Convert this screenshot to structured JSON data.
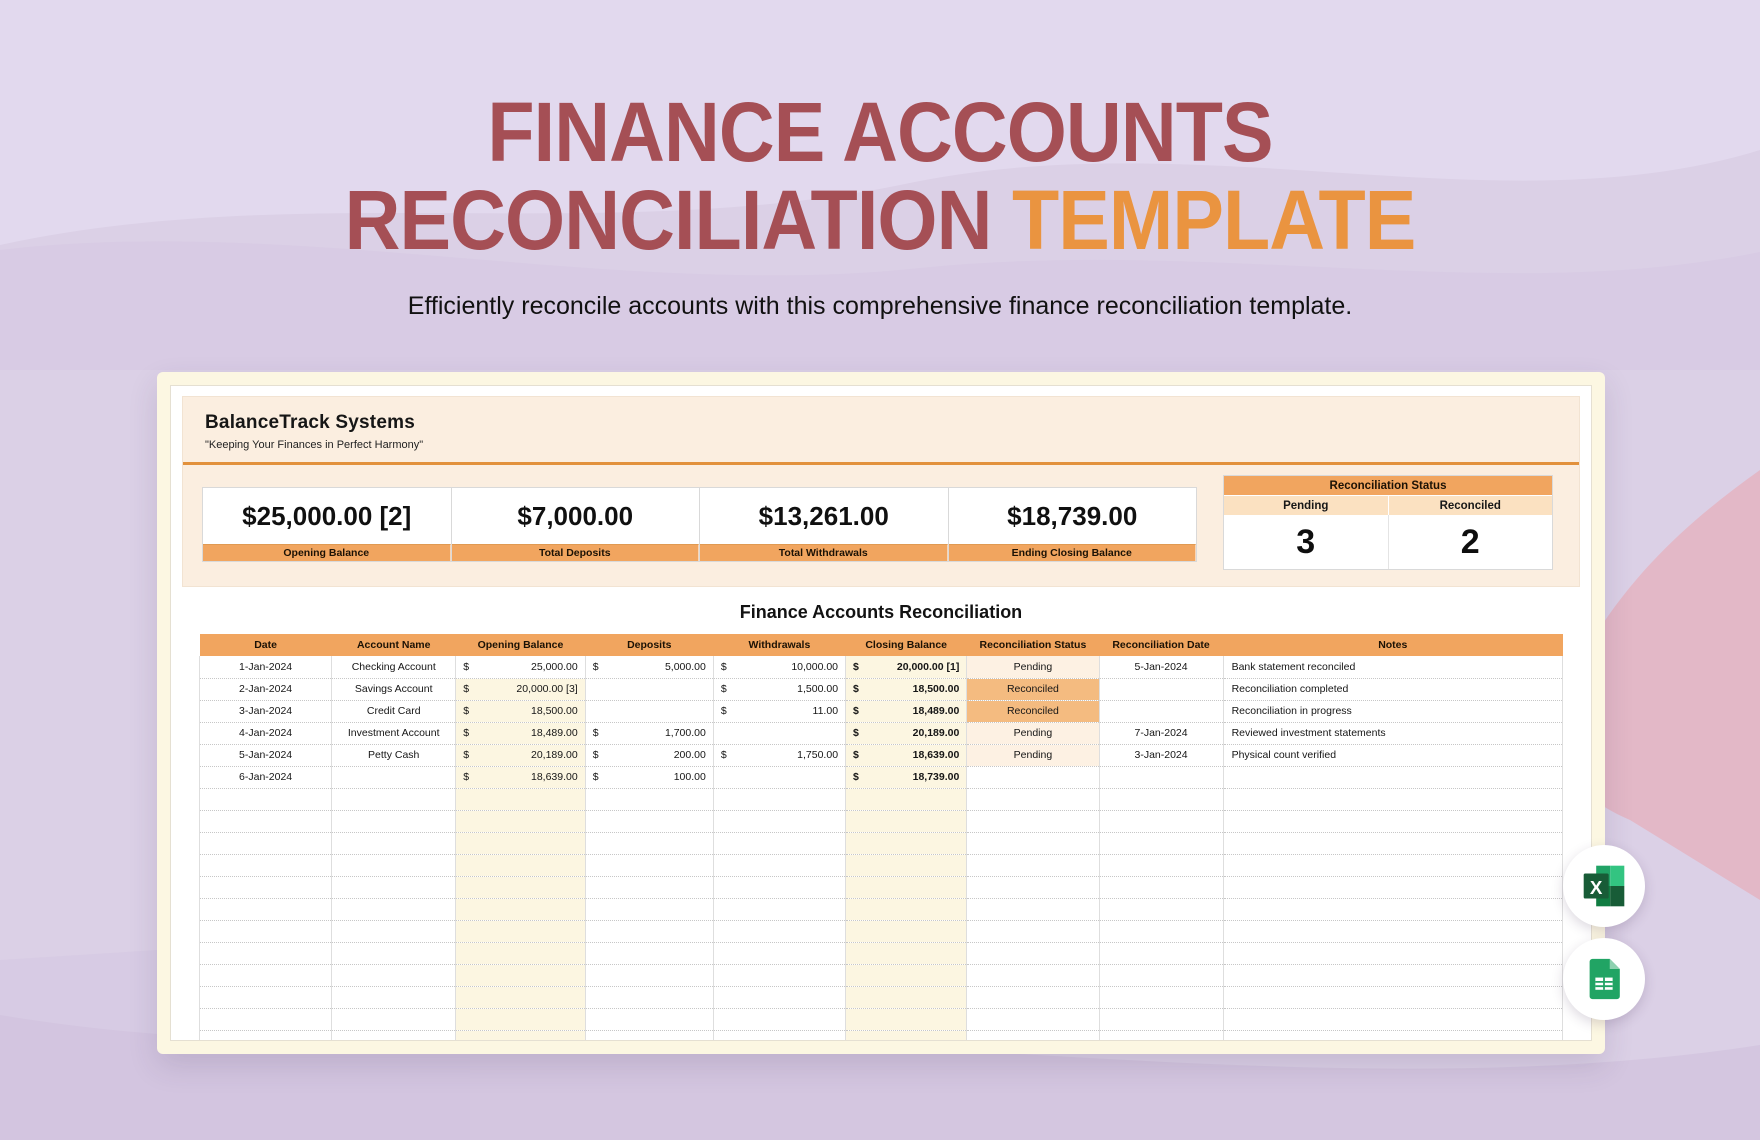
{
  "hero": {
    "title_line1": "FINANCE ACCOUNTS",
    "title_line2": "RECONCILIATION ",
    "title_accent": "TEMPLATE",
    "subtitle": "Efficiently reconcile accounts with this comprehensive finance reconciliation template."
  },
  "company": {
    "name": "BalanceTrack Systems",
    "tagline": "\"Keeping Your Finances in Perfect Harmony\""
  },
  "summary": {
    "cards": [
      {
        "value": "$25,000.00 [2]",
        "label": "Opening Balance"
      },
      {
        "value": "$7,000.00",
        "label": "Total Deposits"
      },
      {
        "value": "$13,261.00",
        "label": "Total Withdrawals"
      },
      {
        "value": "$18,739.00",
        "label": "Ending Closing Balance"
      }
    ],
    "status_box": {
      "title": "Reconciliation Status",
      "col1": "Pending",
      "col2": "Reconciled",
      "val1": "3",
      "val2": "2"
    }
  },
  "table": {
    "title": "Finance Accounts Reconciliation",
    "currency_symbol": "$",
    "headers": [
      "Date",
      "Account Name",
      "Opening Balance",
      "Deposits",
      "Withdrawals",
      "Closing Balance",
      "Reconciliation Status",
      "Reconciliation Date",
      "Notes"
    ],
    "rows": [
      {
        "date": "1-Jan-2024",
        "account": "Checking Account",
        "opening": "25,000.00",
        "deposits": "5,000.00",
        "withdrawals": "10,000.00",
        "closing": "20,000.00 [1]",
        "status": "Pending",
        "rec_date": "5-Jan-2024",
        "notes": "Bank statement reconciled"
      },
      {
        "date": "2-Jan-2024",
        "account": "Savings Account",
        "opening": "20,000.00 [3]",
        "deposits": "",
        "withdrawals": "1,500.00",
        "closing": "18,500.00",
        "status": "Reconciled",
        "rec_date": "",
        "notes": "Reconciliation completed"
      },
      {
        "date": "3-Jan-2024",
        "account": "Credit Card",
        "opening": "18,500.00",
        "deposits": "",
        "withdrawals": "11.00",
        "closing": "18,489.00",
        "status": "Reconciled",
        "rec_date": "",
        "notes": "Reconciliation in progress"
      },
      {
        "date": "4-Jan-2024",
        "account": "Investment Account",
        "opening": "18,489.00",
        "deposits": "1,700.00",
        "withdrawals": "",
        "closing": "20,189.00",
        "status": "Pending",
        "rec_date": "7-Jan-2024",
        "notes": "Reviewed investment statements"
      },
      {
        "date": "5-Jan-2024",
        "account": "Petty Cash",
        "opening": "20,189.00",
        "deposits": "200.00",
        "withdrawals": "1,750.00",
        "closing": "18,639.00",
        "status": "Pending",
        "rec_date": "3-Jan-2024",
        "notes": "Physical count verified"
      },
      {
        "date": "6-Jan-2024",
        "account": "",
        "opening": "18,639.00",
        "deposits": "100.00",
        "withdrawals": "",
        "closing": "18,739.00",
        "status": "",
        "rec_date": "",
        "notes": ""
      }
    ],
    "empty_rows": 12
  },
  "export_icons": {
    "excel": "Excel",
    "sheets": "Google Sheets"
  },
  "colors": {
    "title_maroon": "#a54f55",
    "title_orange": "#ea9440",
    "accent_orange": "#f1a55f",
    "divider_orange": "#e2913c",
    "pending_bg": "#fdf1e3",
    "reconciled_bg": "#f4bb80",
    "cream_cell": "#fcf6e1",
    "background_lavender": "#dbd0e6",
    "background_pink": "#e3b8c7"
  }
}
